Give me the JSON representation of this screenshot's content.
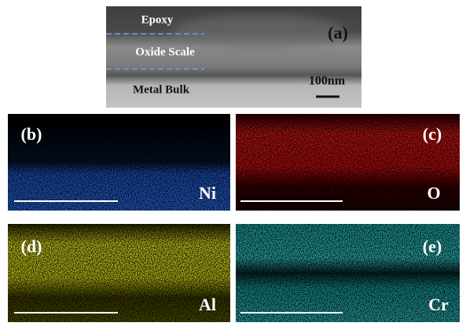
{
  "panels": [
    {
      "label": "(a)",
      "annotations": [
        "Epoxy",
        "Oxide Scale",
        "Metal Bulk"
      ],
      "scale_bar": "100nm"
    },
    {
      "label": "(b)",
      "element": "Ni"
    },
    {
      "label": "(c)",
      "element": "O"
    },
    {
      "label": "(d)",
      "element": "Al"
    },
    {
      "label": "(e)",
      "element": "Cr"
    }
  ]
}
